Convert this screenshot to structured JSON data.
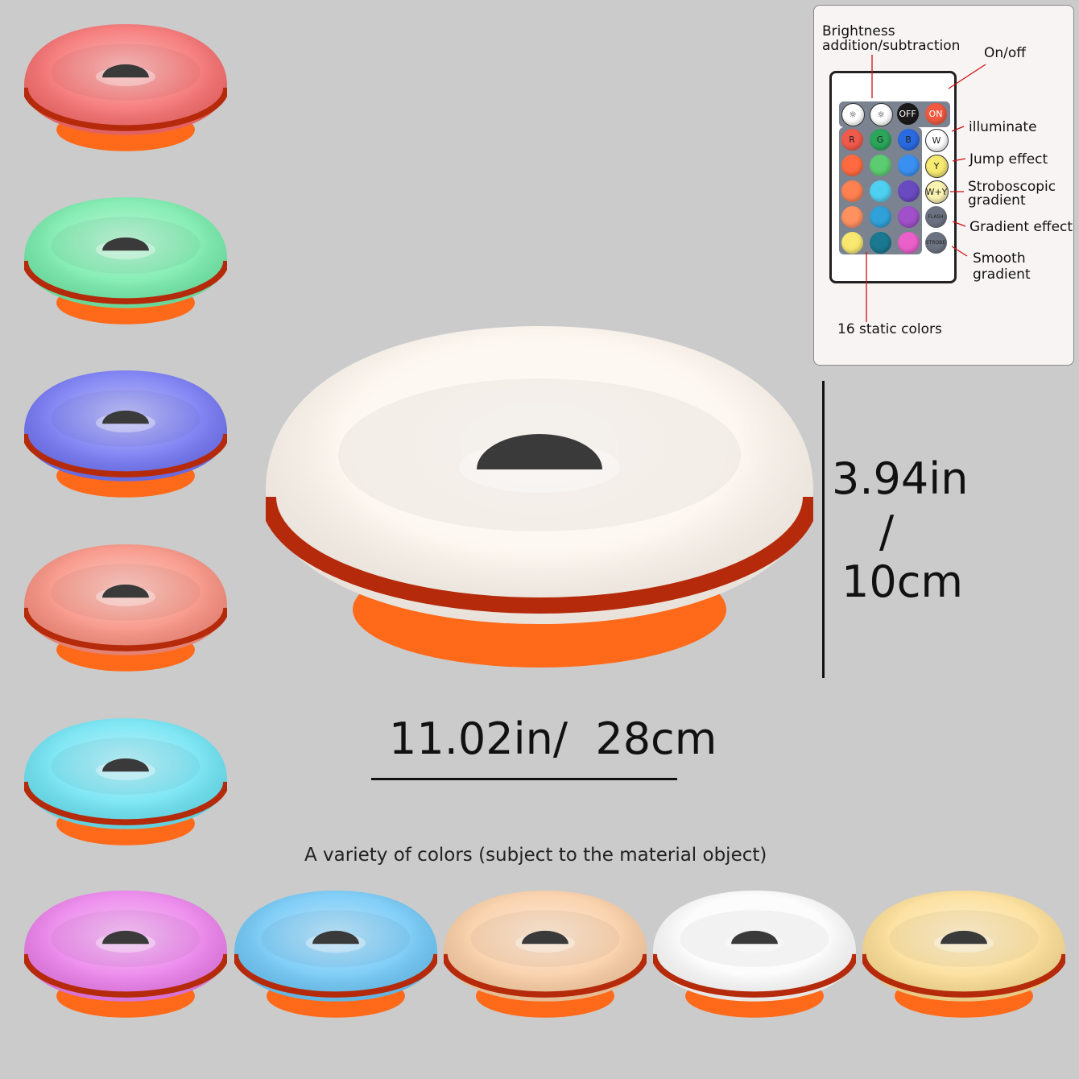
{
  "main_lamp": {
    "color": "#fdf6ee"
  },
  "lamps": [
    {
      "color": "#f56a6a"
    },
    {
      "color": "#72eaa8"
    },
    {
      "color": "#7073f2"
    },
    {
      "color": "#f78c7c"
    },
    {
      "color": "#6ae2f2"
    },
    {
      "color": "#ea7cea"
    },
    {
      "color": "#6cc6f6"
    },
    {
      "color": "#f9cca2"
    },
    {
      "color": "#fbfbfb"
    },
    {
      "color": "#fbdc92"
    }
  ],
  "lamp_colors": {
    "band": "#b52a0a",
    "base": "#ff6a1a",
    "hole": "#3a3a3a"
  },
  "dimensions": {
    "height_in": "3.94in",
    "height_sep": "/",
    "height_cm": "10cm",
    "width": "11.02in/  28cm"
  },
  "caption": "A variety of colors (subject to the material object)",
  "remote": {
    "labels": {
      "brightness_1": "Brightness",
      "brightness_2": "addition/subtraction",
      "onoff": "On/off",
      "illuminate": "illuminate",
      "jump": "Jump effect",
      "strobe_1": "Stroboscopic",
      "strobe_2": "gradient",
      "gradient": "Gradient effect",
      "smooth_1": "Smooth",
      "smooth_2": "gradient",
      "static": "16 static colors"
    },
    "top_buttons": [
      {
        "label": "☼",
        "icon": "brightness-up-icon",
        "color": "#ffffff",
        "text": "#222"
      },
      {
        "label": "☼",
        "icon": "brightness-down-icon",
        "color": "#ffffff",
        "text": "#222"
      },
      {
        "label": "OFF",
        "color": "#1a1a1a",
        "text": "#fff"
      },
      {
        "label": "ON",
        "color": "#f05a40",
        "text": "#fff"
      }
    ],
    "color_buttons": [
      {
        "label": "R",
        "color": "#f05a4a"
      },
      {
        "label": "G",
        "color": "#2aa55a"
      },
      {
        "label": "B",
        "color": "#2a6ae0"
      },
      {
        "label": "",
        "color": "#ff6a40"
      },
      {
        "label": "",
        "color": "#5ccc70"
      },
      {
        "label": "",
        "color": "#3a90f0"
      },
      {
        "label": "",
        "color": "#ff8050"
      },
      {
        "label": "",
        "color": "#50d0f0"
      },
      {
        "label": "",
        "color": "#6a4ac0"
      },
      {
        "label": "",
        "color": "#ff9060"
      },
      {
        "label": "",
        "color": "#30a0d8"
      },
      {
        "label": "",
        "color": "#a050c8"
      },
      {
        "label": "",
        "color": "#f8e870"
      },
      {
        "label": "",
        "color": "#1a7890"
      },
      {
        "label": "",
        "color": "#e860c8"
      }
    ],
    "mode_buttons": [
      {
        "label": "W",
        "color": "#ffffff"
      },
      {
        "label": "Y",
        "color": "#f6ea70"
      },
      {
        "label": "W+Y",
        "color": "#fbf3b0"
      },
      {
        "label": "FLASH",
        "color": "#6c7280"
      },
      {
        "label": "STROBE",
        "color": "#6c7280"
      }
    ]
  }
}
